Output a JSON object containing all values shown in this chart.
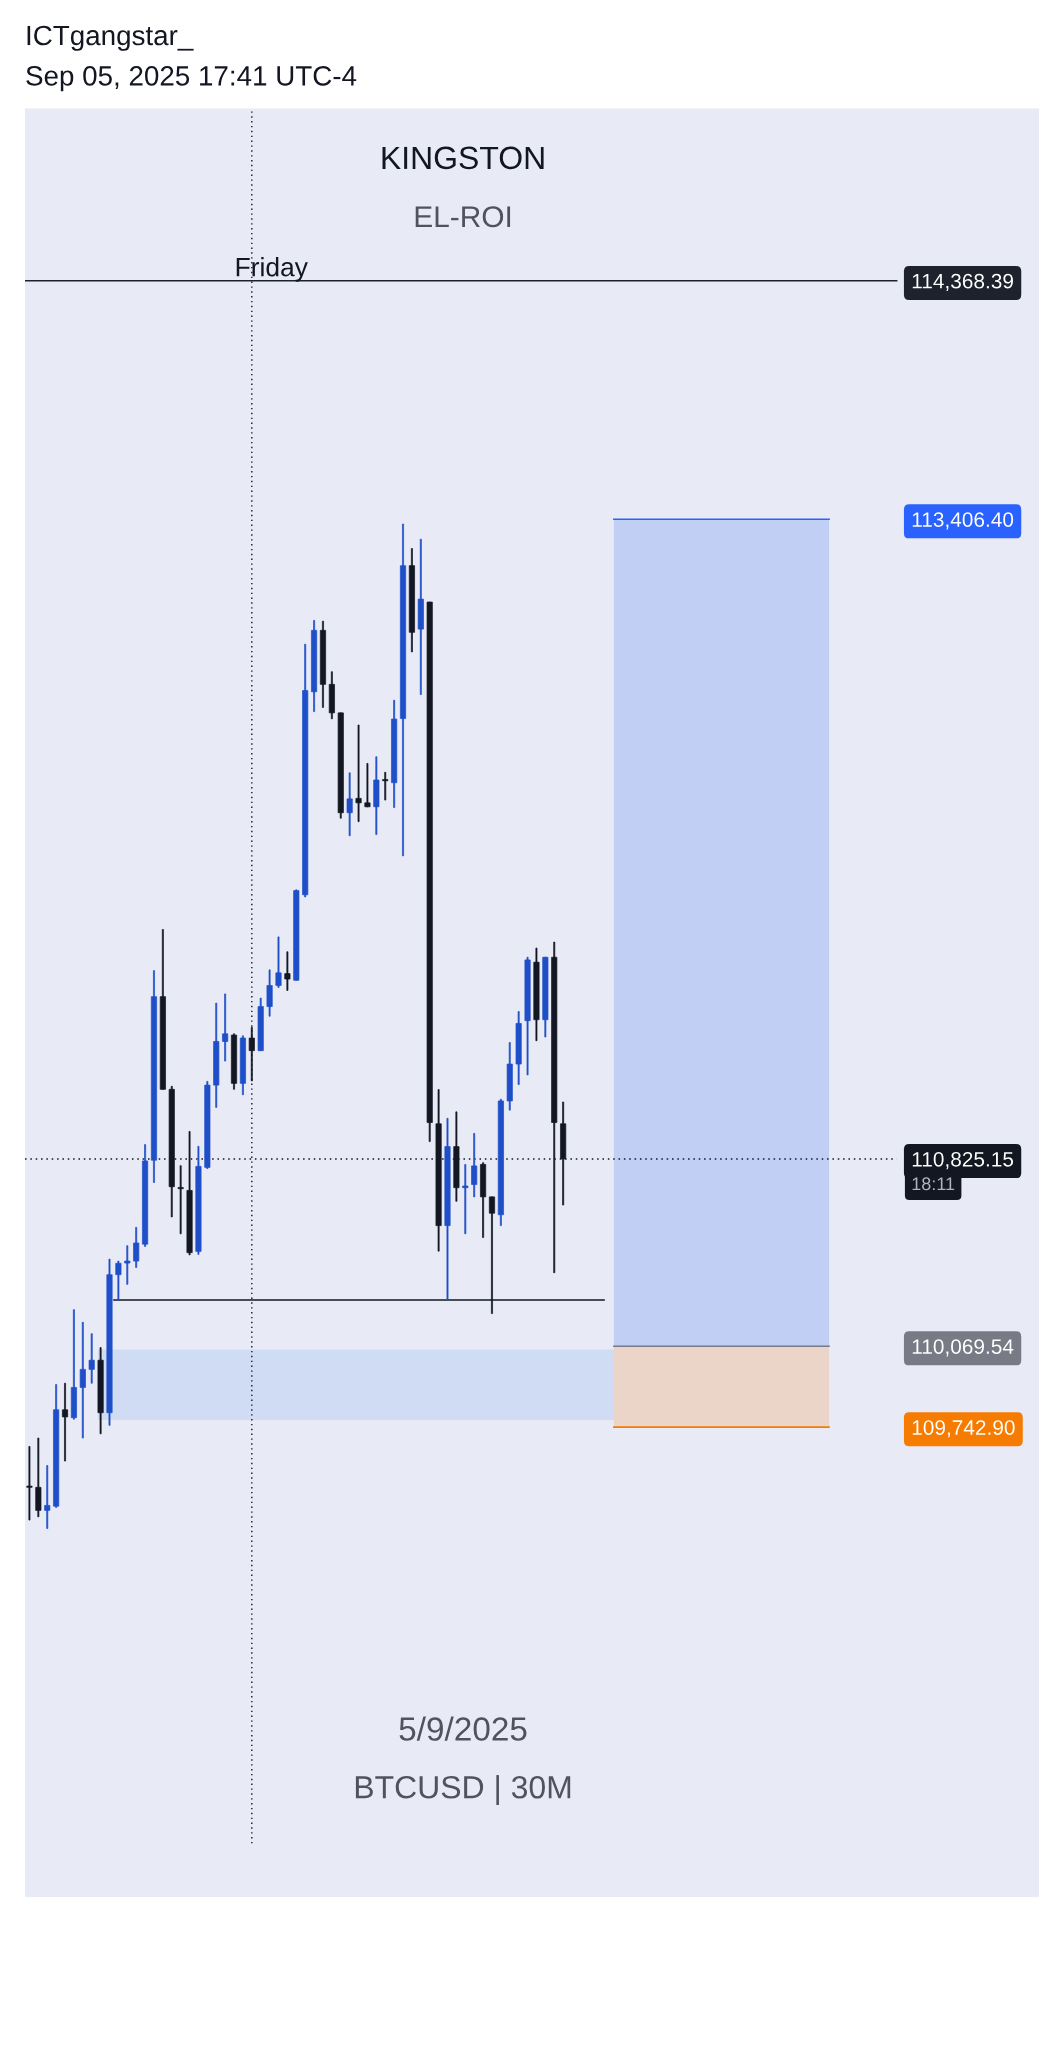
{
  "chart_data": {
    "type": "candlestick",
    "title": "KINGSTON",
    "subtitle": "EL-ROI",
    "annotations": [
      "ICTgangstar_",
      "Sep 05, 2025 17:41 UTC-4",
      "Friday",
      "5/9/2025",
      "BTCUSD | 30M",
      "18:11"
    ],
    "categories": [
      null,
      null,
      null,
      null,
      null,
      null,
      null,
      null,
      null,
      null,
      null,
      null,
      null,
      null,
      null,
      null,
      null,
      null,
      null,
      null,
      null,
      null,
      null,
      null,
      null,
      null,
      null,
      null,
      null,
      null,
      null,
      null,
      null,
      null,
      null,
      null,
      null,
      null,
      null,
      null,
      null,
      null,
      null,
      null,
      null,
      null,
      null,
      null,
      null,
      null,
      null,
      null,
      null,
      null,
      null,
      null,
      null,
      null,
      null,
      null,
      null,
      null,
      null,
      null,
      null,
      null,
      null,
      null,
      null,
      null,
      null,
      null,
      null,
      null,
      null,
      null,
      null,
      null,
      null,
      null,
      null,
      null,
      null,
      null,
      null,
      null,
      null,
      null,
      null,
      null,
      null,
      null,
      null,
      null,
      null,
      null,
      null,
      null,
      null,
      null,
      null,
      null,
      null,
      null,
      null,
      null,
      null,
      null,
      null,
      null,
      null,
      null,
      null,
      null
    ],
    "ohlc": [
      [
        109505,
        109665,
        109368,
        109500
      ],
      [
        109500,
        109699,
        109381,
        109407
      ],
      [
        109407,
        109588,
        109334,
        109427
      ],
      [
        109424,
        109915,
        109419,
        109813
      ],
      [
        109813,
        109920,
        109606,
        109784
      ],
      [
        109781,
        110217,
        109775,
        109903
      ],
      [
        109903,
        110166,
        109699,
        109976
      ],
      [
        109976,
        110120,
        109920,
        110013
      ],
      [
        110013,
        110064,
        109716,
        109801
      ],
      [
        109801,
        110421,
        109750,
        110358
      ],
      [
        110358,
        110413,
        110256,
        110404
      ],
      [
        110405,
        110475,
        110319,
        110413
      ],
      [
        110413,
        110549,
        110387,
        110486
      ],
      [
        110481,
        110883,
        110472,
        110817
      ],
      [
        110820,
        111585,
        110730,
        111480
      ],
      [
        111480,
        111751,
        111106,
        111106
      ],
      [
        111106,
        111118,
        110591,
        110713
      ],
      [
        110710,
        110798,
        110523,
        110705
      ],
      [
        110698,
        110936,
        110438,
        110447
      ],
      [
        110452,
        110876,
        110440,
        110795
      ],
      [
        110791,
        111138,
        110786,
        111123
      ],
      [
        111123,
        111454,
        111033,
        111299
      ],
      [
        111299,
        111491,
        111220,
        111330
      ],
      [
        111325,
        111330,
        111106,
        111130
      ],
      [
        111130,
        111322,
        111084,
        111313
      ],
      [
        111313,
        111356,
        111140,
        111262
      ],
      [
        111262,
        111474,
        111262,
        111440
      ],
      [
        111440,
        111588,
        111401,
        111525
      ],
      [
        111525,
        111721,
        111517,
        111576
      ],
      [
        111573,
        111661,
        111505,
        111551
      ],
      [
        111546,
        111911,
        111546,
        111908
      ],
      [
        111891,
        112902,
        111882,
        112715
      ],
      [
        112710,
        112998,
        112630,
        112958
      ],
      [
        112958,
        112995,
        112647,
        112740
      ],
      [
        112740,
        112791,
        112601,
        112625
      ],
      [
        112625,
        112625,
        112200,
        112222
      ],
      [
        112222,
        112383,
        112129,
        112278
      ],
      [
        112280,
        112576,
        112186,
        112262
      ],
      [
        112262,
        112421,
        112246,
        112246
      ],
      [
        112246,
        112448,
        112134,
        112354
      ],
      [
        112356,
        112385,
        112273,
        112351
      ],
      [
        112343,
        112676,
        112243,
        112600
      ],
      [
        112602,
        113387,
        112048,
        113219
      ],
      [
        113219,
        113288,
        112871,
        112950
      ],
      [
        112963,
        113326,
        112699,
        113084
      ],
      [
        113072,
        113072,
        110895,
        110972
      ],
      [
        110967,
        111105,
        110453,
        110556
      ],
      [
        110556,
        110989,
        110256,
        110875
      ],
      [
        110875,
        111015,
        110654,
        110709
      ],
      [
        110709,
        110803,
        110523,
        110716
      ],
      [
        110722,
        110928,
        110672,
        110797
      ],
      [
        110803,
        110810,
        110508,
        110672
      ],
      [
        110672,
        110672,
        110201,
        110606
      ],
      [
        110600,
        111066,
        110556,
        111059
      ],
      [
        111059,
        111295,
        111022,
        111208
      ],
      [
        111208,
        111420,
        111125,
        111372
      ],
      [
        111383,
        111639,
        111164,
        111628
      ],
      [
        111619,
        111676,
        111302,
        111387
      ],
      [
        111387,
        111639,
        111317,
        111639
      ],
      [
        111639,
        111700,
        110366,
        110972
      ],
      [
        110967,
        111055,
        110639,
        110825.15
      ],
      null,
      null,
      null,
      null,
      null,
      null,
      null,
      null,
      null,
      null,
      null,
      null,
      null,
      null,
      null,
      null,
      null,
      null,
      null,
      null,
      null,
      null,
      null,
      null,
      null,
      null,
      null,
      null,
      null,
      null,
      null,
      null,
      null,
      null,
      null,
      null,
      null,
      null,
      null,
      null,
      null,
      null,
      null,
      null,
      null,
      null,
      null,
      null,
      null,
      null,
      null,
      null,
      null
    ],
    "colors": [
      "#131722",
      "#131722",
      "#1f4fc8",
      "#1f4fc8",
      "#131722",
      "#1f4fc8",
      "#1f4fc8",
      "#1f4fc8",
      "#131722",
      "#1f4fc8",
      "#1f4fc8",
      "#1f4fc8",
      "#1f4fc8",
      "#1f4fc8",
      "#1f4fc8",
      "#131722",
      "#131722",
      "#131722",
      "#131722",
      "#1f4fc8",
      "#1f4fc8",
      "#1f4fc8",
      "#1f4fc8",
      "#131722",
      "#1f4fc8",
      "#131722",
      "#1f4fc8",
      "#1f4fc8",
      "#1f4fc8",
      "#131722",
      "#1f4fc8",
      "#1f4fc8",
      "#1f4fc8",
      "#131722",
      "#131722",
      "#131722",
      "#1f4fc8",
      "#131722",
      "#131722",
      "#1f4fc8",
      "#131722",
      "#1f4fc8",
      "#1f4fc8",
      "#131722",
      "#1f4fc8",
      "#131722",
      "#131722",
      "#1f4fc8",
      "#131722",
      "#1f4fc8",
      "#1f4fc8",
      "#131722",
      "#131722",
      "#1f4fc8",
      "#1f4fc8",
      "#1f4fc8",
      "#1f4fc8",
      "#131722",
      "#1f4fc8",
      "#131722",
      "#131722",
      null,
      null,
      null,
      null,
      null,
      null,
      null,
      null,
      null,
      null,
      null,
      null,
      null,
      null,
      null,
      null,
      null,
      null,
      null,
      null,
      null,
      null,
      null,
      null,
      null,
      null,
      null,
      null,
      null,
      null,
      null,
      null,
      null,
      null,
      null,
      null,
      null,
      null,
      null,
      null,
      null,
      null,
      null,
      null,
      null,
      null,
      null,
      null,
      null,
      null,
      null,
      null,
      null
    ],
    "ylim": [
      107847,
      115064
    ],
    "yticks": [
      {
        "value": 114368.39,
        "label": "114,368.39"
      },
      {
        "value": 113406.4,
        "label": "113,406.40"
      },
      {
        "value": 110825.15,
        "label": "110,825.15"
      },
      {
        "value": 110069.54,
        "label": "110,069.54"
      },
      {
        "value": 109742.9,
        "label": "109,742.90"
      }
    ],
    "tick_labels": "y",
    "ref_lines": [
      {
        "axis": "y",
        "value": 114368.39,
        "color": "#1e222d",
        "line_style": "solid"
      },
      {
        "axis": "y",
        "value": 113406.4,
        "color": "#2962ff",
        "line_style": "solid"
      },
      {
        "axis": "y",
        "value": 110825.15,
        "color": "#131722",
        "line_style": "dotted"
      },
      {
        "axis": "y",
        "value": 110256,
        "color": "#131722",
        "line_style": "solid"
      },
      {
        "axis": "y",
        "value": 110069.54,
        "color": "#787b86",
        "line_style": "solid"
      },
      {
        "axis": "y",
        "value": 109742.9,
        "color": "#f57c00",
        "line_style": "solid"
      }
    ],
    "bands": [
      {
        "axis": "y",
        "from": 109772,
        "to": 110056,
        "color": "#cfdcf3"
      },
      {
        "axis": "y",
        "from": 110069.54,
        "to": 113406.4,
        "color": "#c1cff5"
      },
      {
        "axis": "y",
        "from": 109742.9,
        "to": 110069.54,
        "color": "#ead5c8"
      }
    ]
  }
}
